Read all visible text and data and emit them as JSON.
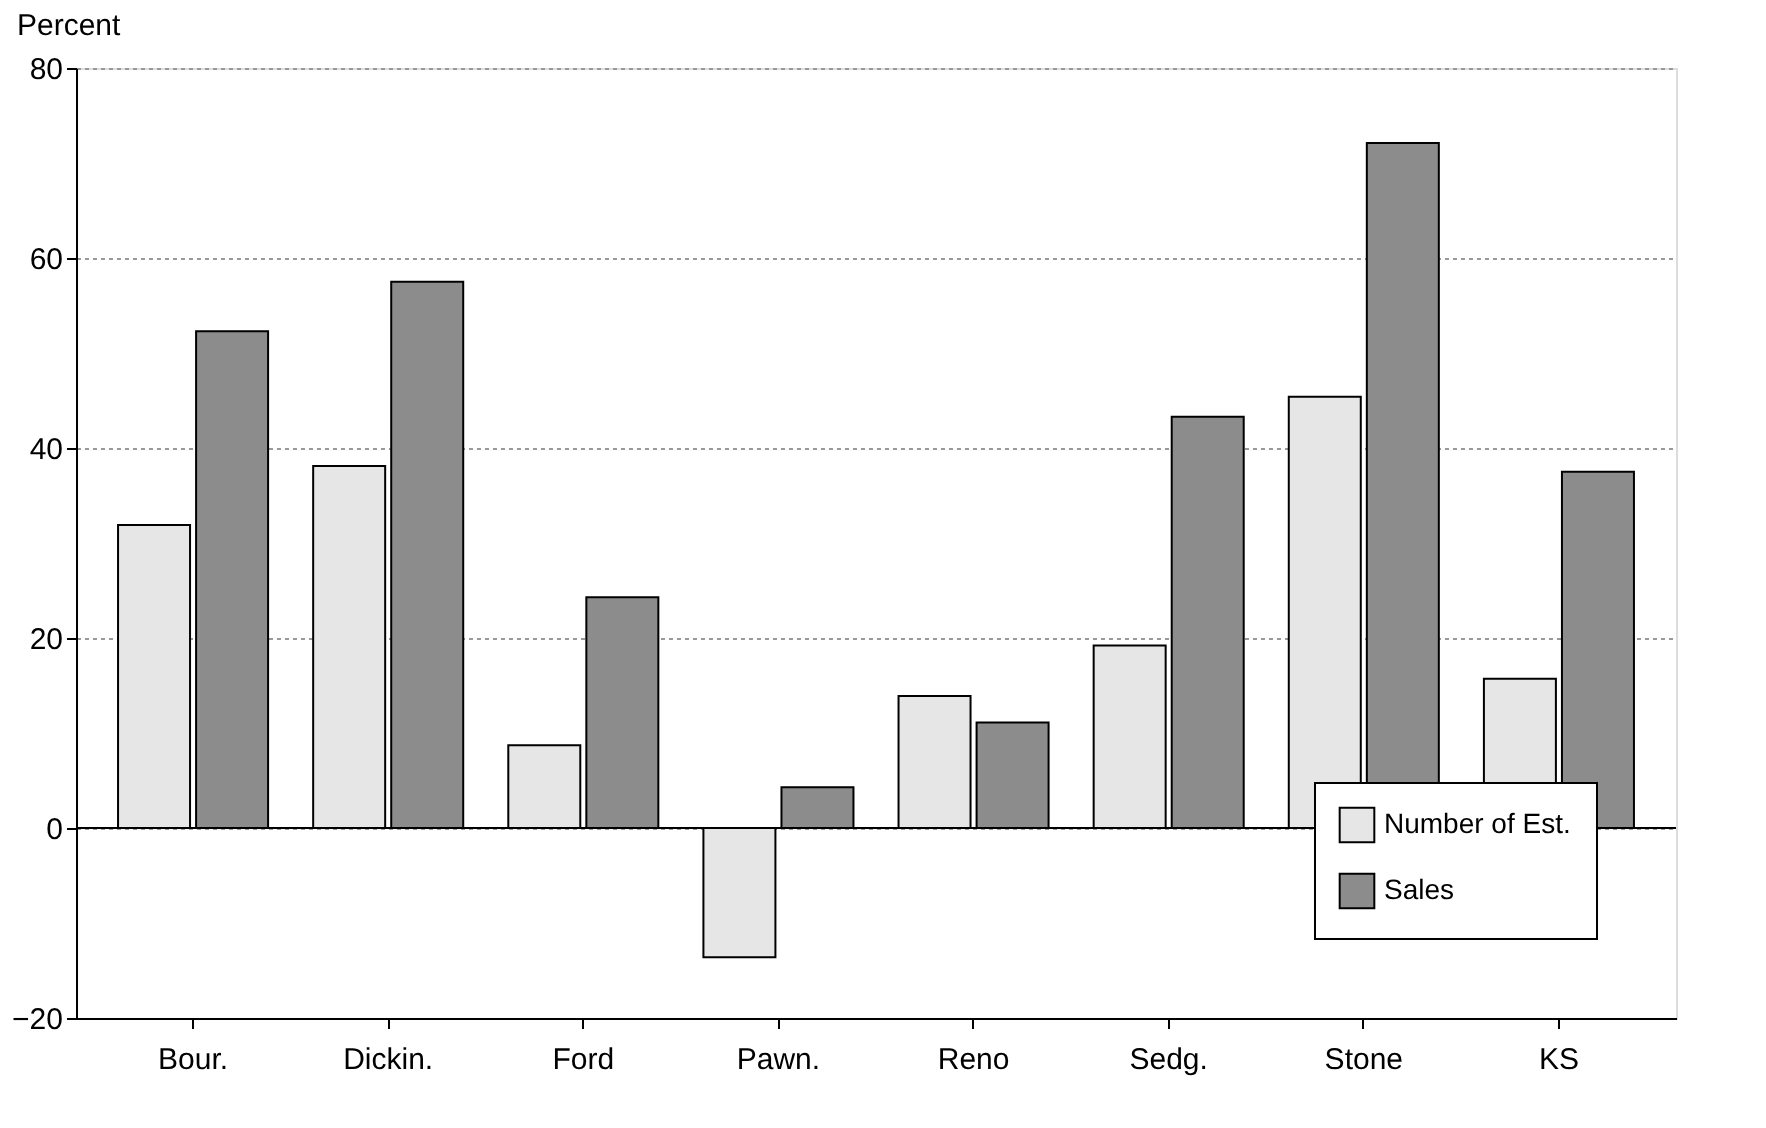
{
  "chart_data": {
    "type": "bar",
    "ylabel": "Percent",
    "categories": [
      "Bour.",
      "Dickin.",
      "Ford",
      "Pawn.",
      "Reno",
      "Sedg.",
      "Stone",
      "KS"
    ],
    "series": [
      {
        "name": "Number of Est.",
        "color": "#e6e6e6",
        "values": [
          31.9,
          38.1,
          8.7,
          -13.6,
          13.9,
          19.2,
          45.4,
          15.7
        ]
      },
      {
        "name": "Sales",
        "color": "#8c8c8c",
        "values": [
          52.3,
          57.5,
          24.3,
          4.3,
          11.1,
          43.3,
          72.1,
          37.5
        ]
      }
    ],
    "ylim": [
      -20,
      80
    ],
    "yticks": [
      -20,
      0,
      20,
      40,
      60,
      80
    ],
    "grid": "y",
    "legend": "bottom right"
  }
}
